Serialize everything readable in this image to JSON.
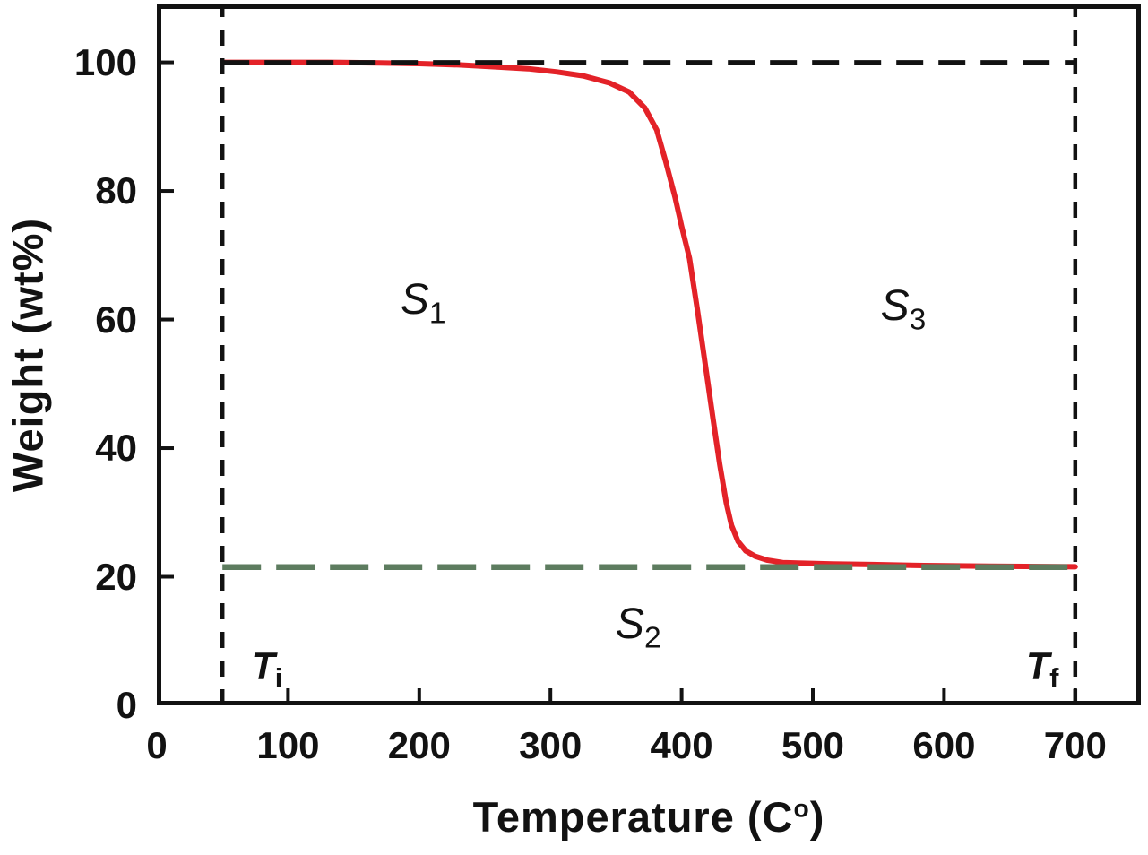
{
  "figure": {
    "background": "#ffffff",
    "text_color": "#121212"
  },
  "chart_data": {
    "type": "line",
    "title": "",
    "xlabel": {
      "text": "Temperature (C",
      "sup": "o",
      "after": ")"
    },
    "ylabel": "Weight (wt%)",
    "xlim": [
      0,
      750
    ],
    "ylim": [
      0,
      109
    ],
    "xticks": [
      0,
      100,
      200,
      300,
      400,
      500,
      600,
      700
    ],
    "yticks": [
      0,
      20,
      40,
      60,
      80,
      100
    ],
    "grid": false,
    "legend": "none",
    "axis_color": "#121212",
    "axis_line_width": 5,
    "tick_length": 14,
    "tick_width": 4,
    "series": [
      {
        "id": "tga-curve",
        "name": "TGA weight-loss curve",
        "color": "#e32228",
        "width": 6,
        "points": [
          [
            50,
            100
          ],
          [
            90,
            100
          ],
          [
            130,
            100
          ],
          [
            170,
            99.9
          ],
          [
            200,
            99.8
          ],
          [
            230,
            99.6
          ],
          [
            258,
            99.3
          ],
          [
            283,
            99.0
          ],
          [
            305,
            98.5
          ],
          [
            325,
            97.9
          ],
          [
            345,
            96.8
          ],
          [
            360,
            95.4
          ],
          [
            372,
            92.9
          ],
          [
            381,
            89.5
          ],
          [
            388,
            84.5
          ],
          [
            395,
            79
          ],
          [
            400,
            74.5
          ],
          [
            406,
            69.5
          ],
          [
            412,
            61.5
          ],
          [
            418,
            53
          ],
          [
            424,
            44.5
          ],
          [
            429,
            37.5
          ],
          [
            434,
            31.5
          ],
          [
            438,
            28
          ],
          [
            443,
            25.5
          ],
          [
            449,
            24
          ],
          [
            456,
            23.2
          ],
          [
            465,
            22.6
          ],
          [
            477,
            22.2
          ],
          [
            492,
            22.1
          ],
          [
            515,
            22.0
          ],
          [
            545,
            21.9
          ],
          [
            585,
            21.75
          ],
          [
            635,
            21.65
          ],
          [
            700,
            21.55
          ]
        ]
      }
    ],
    "reference_lines": [
      {
        "id": "initial-weight-line",
        "label": "initial weight 100 wt%",
        "orientation": "horizontal",
        "value": 100,
        "from": 50,
        "to": 700,
        "color": "#121212",
        "dash": [
          30,
          17
        ],
        "width": 5
      },
      {
        "id": "residual-weight-line",
        "label": "residual weight 21.5 wt%",
        "orientation": "horizontal",
        "value": 21.5,
        "from": 50,
        "to": 700,
        "color": "#5d7c5f",
        "dash": [
          43,
          17
        ],
        "width": 6.5
      },
      {
        "id": "initial-temperature-line",
        "label": "Ti vertical marker",
        "orientation": "vertical",
        "value": 50,
        "from": 0,
        "to": 109,
        "color": "#121212",
        "dash": [
          18,
          14
        ],
        "width": 4.5
      },
      {
        "id": "final-temperature-line",
        "label": "Tf vertical marker",
        "orientation": "vertical",
        "value": 700,
        "from": 0,
        "to": 109,
        "color": "#121212",
        "dash": [
          18,
          14
        ],
        "width": 4.5
      }
    ],
    "annotations": [
      {
        "id": "region-label-s1",
        "main": "S",
        "sub": "1",
        "x": 203,
        "y": 63,
        "style": "region"
      },
      {
        "id": "region-label-s2",
        "main": "S",
        "sub": "2",
        "x": 367,
        "y": 12.5,
        "style": "region"
      },
      {
        "id": "region-label-s3",
        "main": "S",
        "sub": "3",
        "x": 569,
        "y": 62,
        "style": "region"
      },
      {
        "id": "initial-temperature-label",
        "main": "T",
        "sub": "i",
        "x": 84,
        "y": 6,
        "style": "boldT"
      },
      {
        "id": "final-temperature-label",
        "main": "T",
        "sub": "f",
        "x": 675,
        "y": 6,
        "style": "boldT"
      }
    ]
  }
}
